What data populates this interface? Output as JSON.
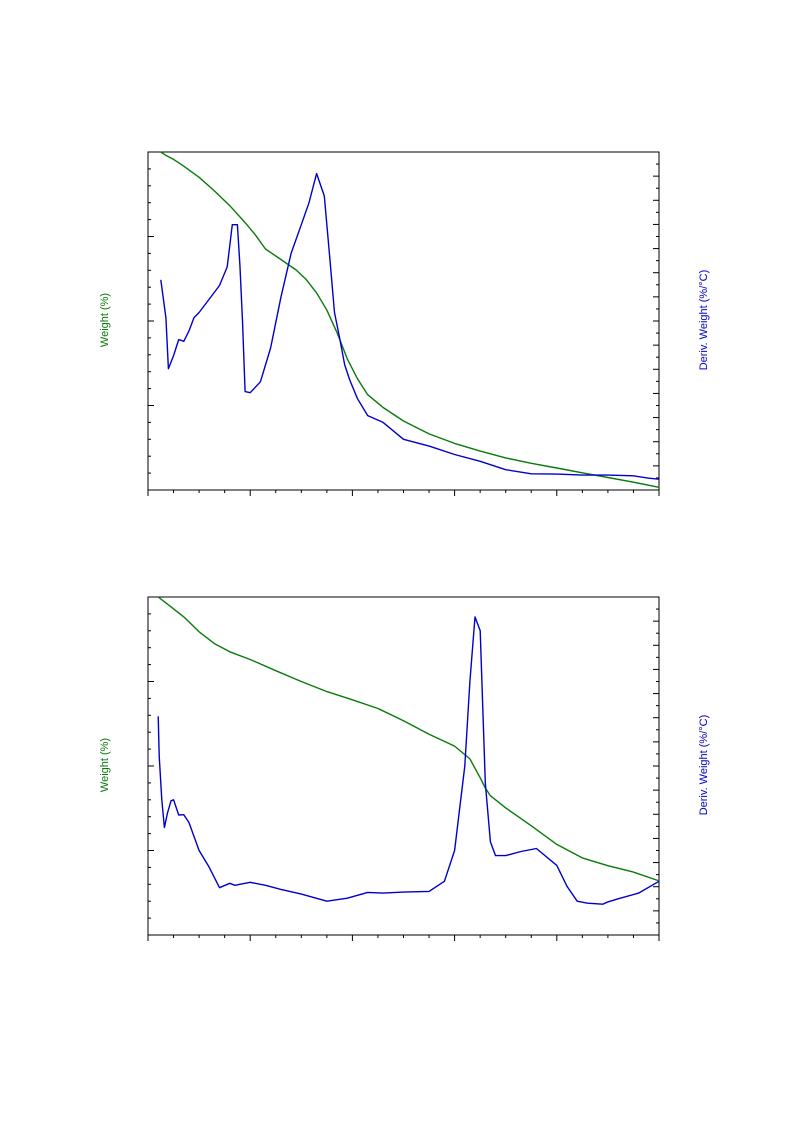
{
  "chart_data": [
    {
      "type": "line",
      "title": "",
      "xlabel": "",
      "ylabel_left": "Weight (%)",
      "ylabel_right": "Deriv. Weight (%/°C)",
      "xlim": [
        0,
        10
      ],
      "y_left_lim": [
        0,
        100
      ],
      "y_right_lim": [
        0,
        100
      ],
      "grid": false,
      "x_major_ticks": 5,
      "colors": {
        "weight": "#0a7a0a",
        "deriv": "#0000cc"
      },
      "series": [
        {
          "name": "Weight (%)",
          "axis": "left",
          "x": [
            0.25,
            0.35,
            0.5,
            0.7,
            1.0,
            1.3,
            1.6,
            1.9,
            2.1,
            2.3,
            2.6,
            2.9,
            3.1,
            3.3,
            3.5,
            3.7,
            3.9,
            4.1,
            4.3,
            4.6,
            5.0,
            5.5,
            6.0,
            6.5,
            7.0,
            7.5,
            8.0,
            8.5,
            9.0,
            9.5,
            10.0
          ],
          "values": [
            100,
            99,
            97.8,
            95.8,
            92.5,
            88.5,
            84.1,
            79.1,
            75.5,
            71.3,
            68.2,
            65.1,
            62.2,
            58.3,
            53.2,
            46.5,
            38.8,
            32.9,
            28.2,
            24.4,
            20.4,
            16.6,
            13.8,
            11.5,
            9.5,
            7.9,
            6.5,
            5.1,
            3.7,
            2.3,
            0.8
          ]
        },
        {
          "name": "Deriv. Weight (%/°C)",
          "axis": "right",
          "x": [
            0.25,
            0.35,
            0.4,
            0.5,
            0.6,
            0.7,
            0.8,
            0.9,
            1.0,
            1.2,
            1.4,
            1.55,
            1.65,
            1.75,
            1.8,
            1.85,
            1.9,
            2.0,
            2.2,
            2.4,
            2.6,
            2.8,
            3.0,
            3.15,
            3.3,
            3.45,
            3.55,
            3.65,
            3.75,
            3.85,
            3.95,
            4.1,
            4.3,
            4.6,
            5.0,
            5.5,
            6.0,
            6.5,
            7.0,
            7.5,
            8.0,
            8.5,
            9.0,
            9.5,
            9.8,
            10.0
          ],
          "values": [
            62.2,
            51,
            35.9,
            39.8,
            44.5,
            44,
            47,
            51,
            52.5,
            56.5,
            60.5,
            66,
            78.5,
            78.5,
            66,
            50,
            29.1,
            28.8,
            32,
            42,
            57,
            70,
            78.5,
            85,
            93.6,
            87,
            70,
            52.5,
            45,
            37,
            32.5,
            27,
            22,
            20,
            15,
            13,
            10.5,
            8.5,
            6,
            4.8,
            4.7,
            4.4,
            4.4,
            4.2,
            3.5,
            3.2
          ]
        }
      ]
    },
    {
      "type": "line",
      "title": "",
      "xlabel": "",
      "ylabel_left": "Weight (%)",
      "ylabel_right": "Deriv. Weight (%/°C)",
      "xlim": [
        0,
        10
      ],
      "y_left_lim": [
        0,
        100
      ],
      "y_right_lim": [
        0,
        100
      ],
      "grid": false,
      "x_major_ticks": 5,
      "colors": {
        "weight": "#0a7a0a",
        "deriv": "#0000cc"
      },
      "series": [
        {
          "name": "Weight (%)",
          "axis": "left",
          "x": [
            0.2,
            0.4,
            0.7,
            1.0,
            1.3,
            1.6,
            2.0,
            2.5,
            3.0,
            3.5,
            4.0,
            4.5,
            5.0,
            5.5,
            6.0,
            6.3,
            6.5,
            6.6,
            6.7,
            7.0,
            7.5,
            8.0,
            8.5,
            9.0,
            9.5,
            10.0
          ],
          "values": [
            100,
            97.7,
            94.1,
            89.7,
            86.2,
            83.8,
            81.5,
            78.2,
            75.0,
            72.0,
            69.6,
            67.0,
            63.4,
            59.4,
            55.9,
            52.1,
            46.5,
            43.5,
            41.2,
            37.6,
            32.3,
            26.8,
            22.8,
            20.5,
            18.6,
            16.0
          ]
        },
        {
          "name": "Deriv. Weight (%/°C)",
          "axis": "right",
          "x": [
            0.2,
            0.22,
            0.27,
            0.32,
            0.38,
            0.45,
            0.5,
            0.6,
            0.7,
            0.8,
            1.0,
            1.2,
            1.4,
            1.6,
            1.7,
            2.0,
            2.3,
            2.6,
            3.0,
            3.5,
            3.9,
            4.3,
            4.6,
            5.0,
            5.5,
            5.8,
            6.0,
            6.2,
            6.3,
            6.4,
            6.5,
            6.6,
            6.7,
            6.8,
            7.0,
            7.3,
            7.6,
            8.0,
            8.2,
            8.4,
            8.6,
            8.9,
            9.0,
            9.2,
            9.6,
            10.0
          ],
          "values": [
            64.7,
            53,
            40,
            31.8,
            36,
            39.7,
            40,
            35.5,
            35.6,
            33.3,
            25,
            20,
            14,
            15.3,
            14.7,
            15.6,
            14.7,
            13.5,
            12.1,
            10,
            10.9,
            12.6,
            12.4,
            12.7,
            12.9,
            15.9,
            25,
            50,
            75,
            94.1,
            90,
            45,
            27.6,
            23.5,
            23.5,
            24.7,
            25.6,
            20.6,
            14.4,
            10,
            9.4,
            9.1,
            9.8,
            10.7,
            12.4,
            15.9
          ]
        }
      ]
    }
  ]
}
